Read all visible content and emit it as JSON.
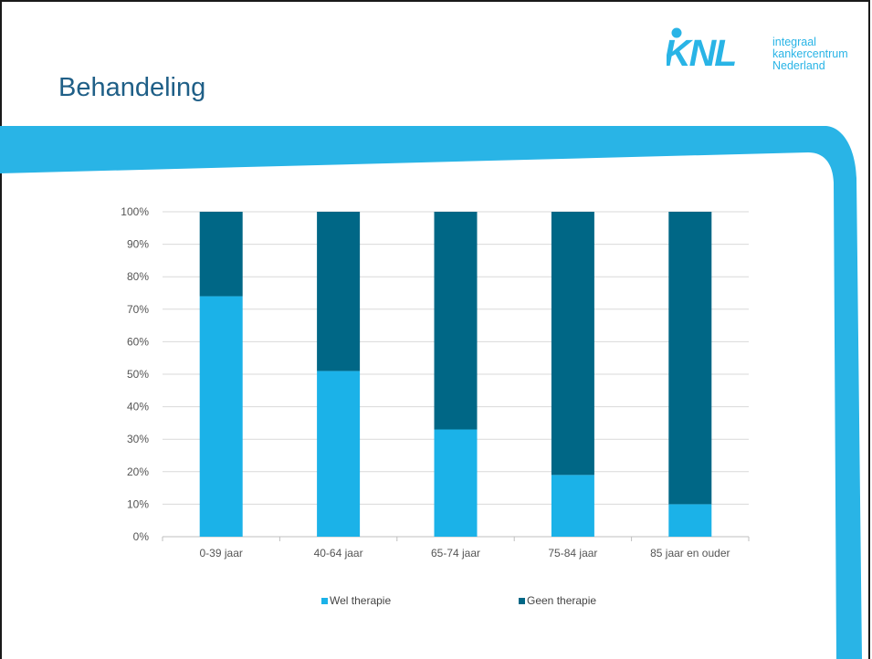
{
  "slide": {
    "title": "Behandeling"
  },
  "logo": {
    "mark_text": "KNL",
    "lines": [
      "integraal",
      "kankercentrum",
      "Nederland"
    ]
  },
  "colors": {
    "title": "#1f5f87",
    "accent_light": "#1bb2e8",
    "accent_dark": "#006786",
    "band": "#29b4e6"
  },
  "chart_data": {
    "type": "bar",
    "stacked": true,
    "categories": [
      "0-39 jaar",
      "40-64 jaar",
      "65-74 jaar",
      "75-84 jaar",
      "85 jaar en ouder"
    ],
    "series": [
      {
        "name": "Wel therapie",
        "color": "#1bb2e8",
        "values": [
          74,
          51,
          33,
          19,
          10
        ]
      },
      {
        "name": "Geen therapie",
        "color": "#006786",
        "values": [
          26,
          49,
          67,
          81,
          90
        ]
      }
    ],
    "ylim": [
      0,
      100
    ],
    "yticks": [
      "0%",
      "10%",
      "20%",
      "30%",
      "40%",
      "50%",
      "60%",
      "70%",
      "80%",
      "90%",
      "100%"
    ],
    "grid": true,
    "legend": "bottom"
  }
}
